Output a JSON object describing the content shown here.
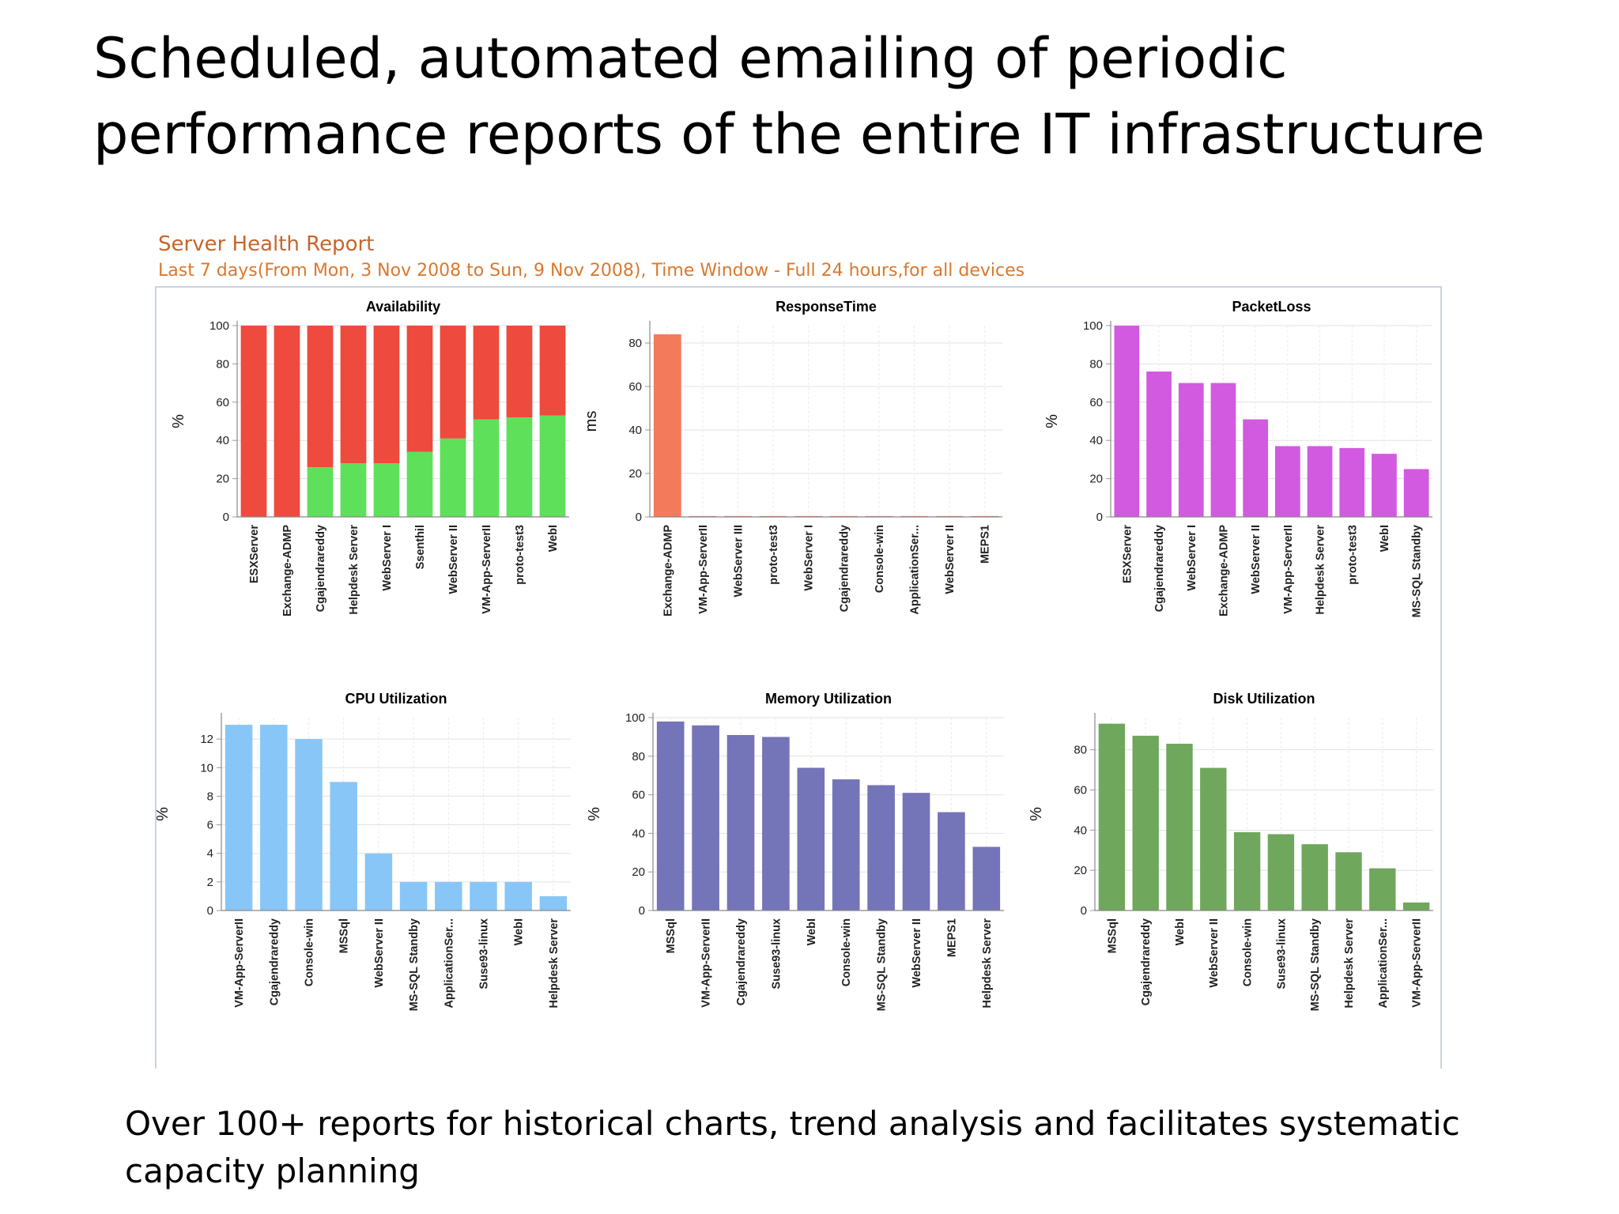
{
  "slide": {
    "title": "Scheduled, automated emailing of periodic performance reports of the entire IT infrastructure",
    "footer": "Over 100+ reports for historical charts, trend analysis and facilitates systematic capacity planning"
  },
  "report": {
    "title": "Server Health Report",
    "subtitle": "Last 7 days(From Mon, 3 Nov 2008 to Sun, 9 Nov 2008), Time Window - Full 24 hours,for all devices"
  },
  "chart_data": [
    {
      "type": "bar",
      "stacked": true,
      "title": "Availability",
      "ylabel": "%",
      "ylim": [
        0,
        100
      ],
      "yticks": [
        0,
        20,
        40,
        60,
        80,
        100
      ],
      "categories": [
        "ESXServer",
        "Exchange-ADMP",
        "Cgajendrareddy",
        "Helpdesk Server",
        "WebServer I",
        "Ssenthil",
        "WebServer II",
        "VM-App-ServerII",
        "proto-test3",
        "WebI"
      ],
      "series": [
        {
          "color": "#5ee05a",
          "values": [
            0,
            0,
            26,
            28,
            28,
            34,
            41,
            51,
            52,
            53
          ]
        },
        {
          "color": "#ee4a3e",
          "values": [
            100,
            100,
            74,
            72,
            72,
            66,
            59,
            49,
            48,
            47
          ]
        }
      ],
      "grid": true
    },
    {
      "type": "bar",
      "title": "ResponseTime",
      "ylabel": "ms",
      "ylim": [
        0,
        88
      ],
      "yticks": [
        0,
        20,
        40,
        60,
        80
      ],
      "categories": [
        "Exchange-ADMP",
        "VM-App-ServerII",
        "WebServer III",
        "proto-test3",
        "WebServer I",
        "Cgajendrareddy",
        "Console-win",
        "ApplicationSer...",
        "WebServer II",
        "MEPS1"
      ],
      "values": [
        84,
        0.4,
        0.4,
        0.4,
        0.4,
        0.4,
        0.4,
        0.4,
        0.4,
        0.4
      ],
      "color": "#f47a5c",
      "grid": true
    },
    {
      "type": "bar",
      "title": "PacketLoss",
      "ylabel": "%",
      "ylim": [
        0,
        100
      ],
      "yticks": [
        0,
        20,
        40,
        60,
        80,
        100
      ],
      "categories": [
        "ESXServer",
        "Cgajendrareddy",
        "WebServer I",
        "Exchange-ADMP",
        "WebServer II",
        "VM-App-ServerII",
        "Helpdesk Server",
        "proto-test3",
        "WebI",
        "MS-SQL Standby"
      ],
      "values": [
        100,
        76,
        70,
        70,
        51,
        37,
        37,
        36,
        33,
        25
      ],
      "color": "#d25ae0",
      "grid": true
    },
    {
      "type": "bar",
      "title": "CPU Utilization",
      "ylabel": "%",
      "ylim": [
        0,
        13.5
      ],
      "yticks": [
        0,
        2,
        4,
        6,
        8,
        10,
        12
      ],
      "categories": [
        "VM-App-ServerII",
        "Cgajendrareddy",
        "Console-win",
        "MSSql",
        "WebServer II",
        "MS-SQL Standby",
        "ApplicationSer...",
        "Suse93-linux",
        "WebI",
        "Helpdesk Server"
      ],
      "values": [
        13,
        13,
        12,
        9,
        4,
        2,
        2,
        2,
        2,
        1
      ],
      "color": "#88c6f7",
      "grid": true
    },
    {
      "type": "bar",
      "title": "Memory Utilization",
      "ylabel": "%",
      "ylim": [
        0,
        100
      ],
      "yticks": [
        0,
        20,
        40,
        60,
        80,
        100
      ],
      "categories": [
        "MSSql",
        "VM-App-ServerII",
        "Cgajendrareddy",
        "Suse93-linux",
        "WebI",
        "Console-win",
        "MS-SQL Standby",
        "WebServer II",
        "MEPS1",
        "Helpdesk Server"
      ],
      "values": [
        98,
        96,
        91,
        90,
        74,
        68,
        65,
        61,
        51,
        33
      ],
      "color": "#7474b8",
      "grid": true
    },
    {
      "type": "bar",
      "title": "Disk Utilization",
      "ylabel": "%",
      "ylim": [
        0,
        96
      ],
      "yticks": [
        0,
        20,
        40,
        60,
        80
      ],
      "categories": [
        "MSSql",
        "Cgajendrareddy",
        "WebI",
        "WebServer II",
        "Console-win",
        "Suse93-linux",
        "MS-SQL Standby",
        "Helpdesk Server",
        "ApplicationSer...",
        "VM-App-ServerII"
      ],
      "values": [
        93,
        87,
        83,
        71,
        39,
        38,
        33,
        29,
        21,
        4
      ],
      "color": "#6fa75c",
      "grid": true
    }
  ]
}
